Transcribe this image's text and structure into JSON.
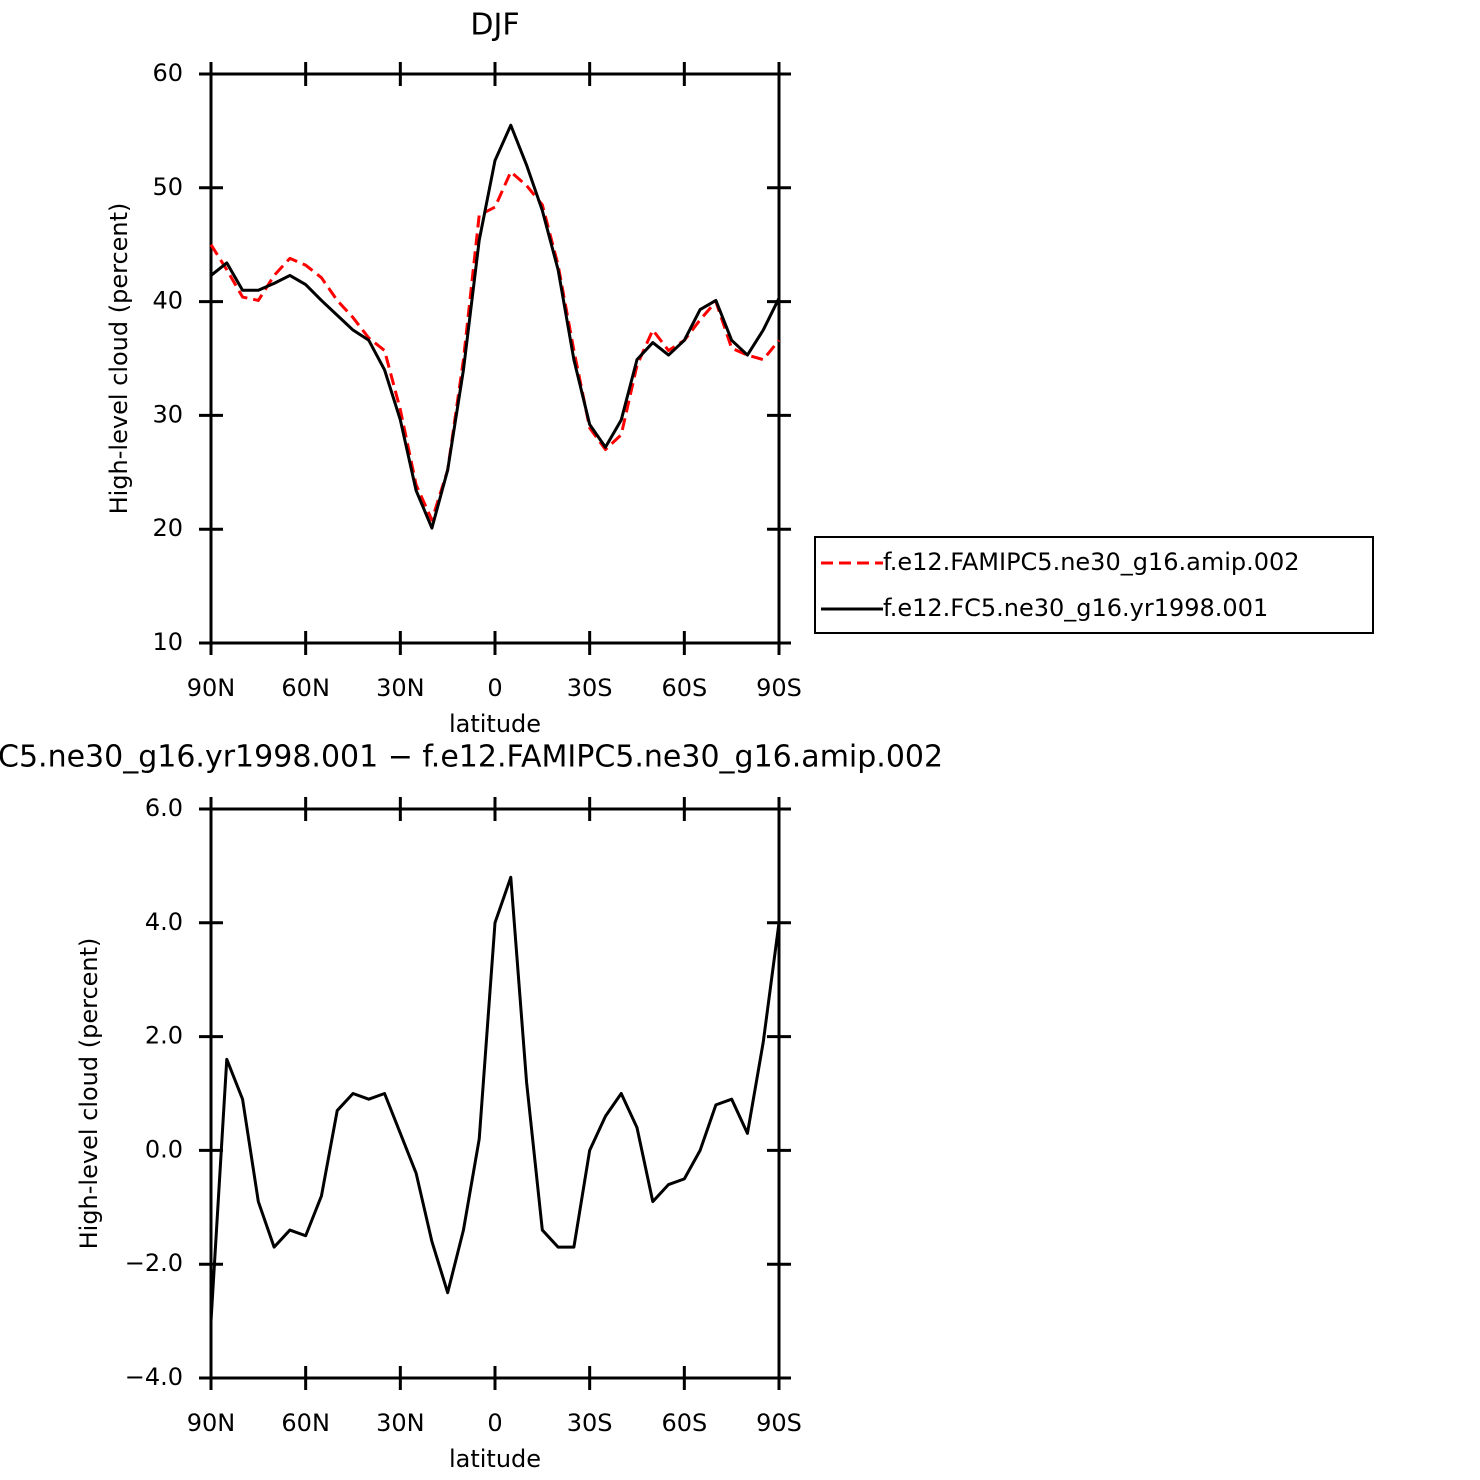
{
  "chart_data": [
    {
      "type": "line",
      "title": "DJF",
      "xlabel": "latitude",
      "ylabel": "High-level cloud (percent)",
      "x": [
        90,
        85,
        80,
        75,
        70,
        65,
        60,
        55,
        50,
        45,
        40,
        35,
        30,
        25,
        20,
        15,
        10,
        5,
        0,
        -5,
        -10,
        -15,
        -20,
        -25,
        -30,
        -35,
        -40,
        -45,
        -50,
        -55,
        -60,
        -65,
        -70,
        -75,
        -80,
        -85,
        -90
      ],
      "xlim": [
        90,
        -90
      ],
      "xticks": [
        {
          "value": 90,
          "label": "90N"
        },
        {
          "value": 60,
          "label": "60N"
        },
        {
          "value": 30,
          "label": "30N"
        },
        0,
        {
          "value": -30,
          "label": "30S"
        },
        {
          "value": -60,
          "label": "60S"
        },
        {
          "value": -90,
          "label": "90S"
        }
      ],
      "ylim": [
        10,
        60
      ],
      "yticks": [
        10,
        20,
        30,
        40,
        50,
        60
      ],
      "legend": "right",
      "series": [
        {
          "name": "f.e12.FAMIPC5.ne30_g16.amip.002",
          "color": "#ff0000",
          "linestyle": "dashed",
          "values": [
            45.0,
            42.8,
            40.4,
            40.1,
            42.3,
            43.8,
            43.2,
            42.1,
            40.1,
            38.6,
            36.8,
            35.7,
            30.5,
            23.9,
            20.8,
            25.2,
            34.9,
            47.6,
            48.3,
            51.4,
            50.2,
            48.5,
            43.2,
            35.7,
            28.9,
            27.0,
            28.3,
            34.4,
            37.5,
            35.7,
            36.6,
            38.4,
            40.0,
            35.9,
            35.3,
            34.9,
            36.6
          ]
        },
        {
          "name": "f.e12.FC5.ne30_g16.yr1998.001",
          "color": "#000000",
          "linestyle": "solid",
          "values": [
            42.3,
            43.4,
            41.0,
            41.0,
            41.6,
            42.3,
            41.5,
            40.1,
            38.8,
            37.5,
            36.6,
            34.0,
            29.6,
            23.4,
            20.1,
            25.2,
            34.0,
            45.4,
            52.4,
            55.5,
            52.0,
            48.0,
            42.8,
            34.9,
            29.2,
            27.2,
            29.6,
            34.9,
            36.4,
            35.3,
            36.6,
            39.3,
            40.1,
            36.6,
            35.3,
            37.5,
            40.3
          ]
        }
      ]
    },
    {
      "type": "line",
      "title": "C5.ne30_g16.yr1998.001 − f.e12.FAMIPC5.ne30_g16.amip.002",
      "xlabel": "latitude",
      "ylabel": "High-level cloud (percent)",
      "x": [
        90,
        85,
        80,
        75,
        70,
        65,
        60,
        55,
        50,
        45,
        40,
        35,
        30,
        25,
        20,
        15,
        10,
        5,
        0,
        -5,
        -10,
        -15,
        -20,
        -25,
        -30,
        -35,
        -40,
        -45,
        -50,
        -55,
        -60,
        -65,
        -70,
        -75,
        -80,
        -85,
        -90
      ],
      "xlim": [
        90,
        -90
      ],
      "xticks": [
        {
          "value": 90,
          "label": "90N"
        },
        {
          "value": 60,
          "label": "60N"
        },
        {
          "value": 30,
          "label": "30N"
        },
        0,
        {
          "value": -30,
          "label": "30S"
        },
        {
          "value": -60,
          "label": "60S"
        },
        {
          "value": -90,
          "label": "90S"
        }
      ],
      "ylim": [
        -4,
        6
      ],
      "yticks": [
        {
          "value": -4,
          "label": "−4.0"
        },
        {
          "value": -2,
          "label": "−2.0"
        },
        {
          "value": 0,
          "label": "0.0"
        },
        {
          "value": 2,
          "label": "2.0"
        },
        {
          "value": 4,
          "label": "4.0"
        },
        {
          "value": 6,
          "label": "6.0"
        }
      ],
      "series": [
        {
          "color": "#000000",
          "linestyle": "solid",
          "values": [
            -3.0,
            1.6,
            0.9,
            -0.9,
            -1.7,
            -1.4,
            -1.5,
            -0.8,
            0.7,
            1.0,
            0.9,
            1.0,
            0.3,
            -0.4,
            -1.6,
            -2.5,
            -1.4,
            0.2,
            4.0,
            4.8,
            1.2,
            -1.4,
            -1.7,
            -1.7,
            0.0,
            0.6,
            1.0,
            0.4,
            -0.9,
            -0.6,
            -0.5,
            0.0,
            0.8,
            0.9,
            0.3,
            1.9,
            4.0
          ]
        }
      ]
    }
  ]
}
